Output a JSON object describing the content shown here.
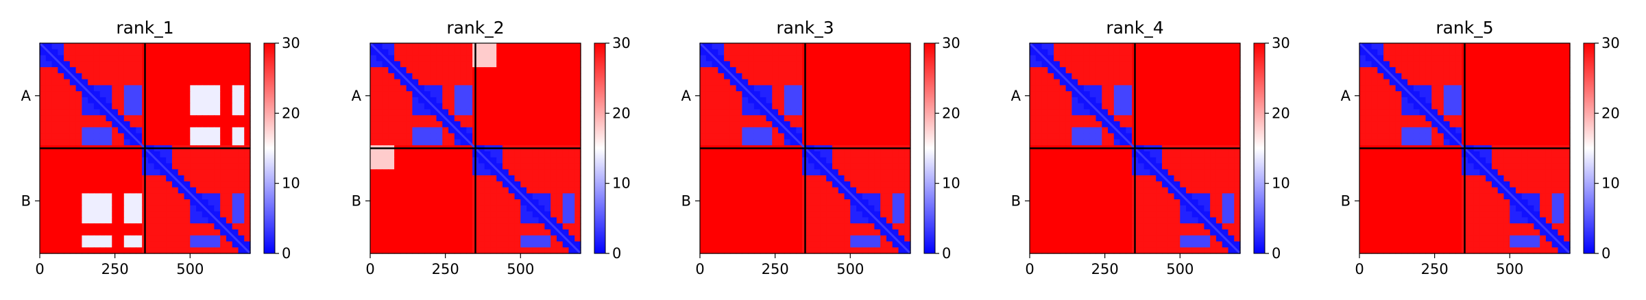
{
  "chart_data": [
    {
      "type": "heatmap",
      "title": "rank_1",
      "chains": [
        "A",
        "B"
      ],
      "chain_boundary": 350,
      "x_ticks": [
        0,
        250,
        500
      ],
      "xlim": [
        0,
        700
      ],
      "colorbar": {
        "min": 0,
        "max": 30,
        "ticks": [
          0,
          10,
          20,
          30
        ],
        "colors": [
          "#0000ff",
          "#ffffff",
          "#ff0000"
        ]
      },
      "intra_blocks": [
        [
          0,
          80
        ],
        [
          150,
          240
        ],
        [
          290,
          330
        ]
      ],
      "interchain_lowish": true
    },
    {
      "type": "heatmap",
      "title": "rank_2",
      "chains": [
        "A",
        "B"
      ],
      "chain_boundary": 350,
      "x_ticks": [
        0,
        250,
        500
      ],
      "xlim": [
        0,
        700
      ],
      "colorbar": {
        "min": 0,
        "max": 30,
        "ticks": [
          0,
          10,
          20,
          30
        ],
        "colors": [
          "#0000ff",
          "#ffffff",
          "#ff0000"
        ]
      },
      "intra_blocks": [
        [
          0,
          80
        ],
        [
          150,
          240
        ],
        [
          290,
          330
        ]
      ],
      "interchain_lowish": false
    },
    {
      "type": "heatmap",
      "title": "rank_3",
      "chains": [
        "A",
        "B"
      ],
      "chain_boundary": 350,
      "x_ticks": [
        0,
        250,
        500
      ],
      "xlim": [
        0,
        700
      ],
      "colorbar": {
        "min": 0,
        "max": 30,
        "ticks": [
          0,
          10,
          20,
          30
        ],
        "colors": [
          "#0000ff",
          "#ffffff",
          "#ff0000"
        ]
      },
      "intra_blocks": [
        [
          0,
          80
        ],
        [
          150,
          240
        ],
        [
          290,
          330
        ]
      ],
      "interchain_lowish": false
    },
    {
      "type": "heatmap",
      "title": "rank_4",
      "chains": [
        "A",
        "B"
      ],
      "chain_boundary": 350,
      "x_ticks": [
        0,
        250,
        500
      ],
      "xlim": [
        0,
        700
      ],
      "colorbar": {
        "min": 0,
        "max": 30,
        "ticks": [
          0,
          10,
          20,
          30
        ],
        "colors": [
          "#0000ff",
          "#ffffff",
          "#ff0000"
        ]
      },
      "intra_blocks": [
        [
          0,
          80
        ],
        [
          150,
          240
        ],
        [
          290,
          330
        ]
      ],
      "interchain_lowish": false
    },
    {
      "type": "heatmap",
      "title": "rank_5",
      "chains": [
        "A",
        "B"
      ],
      "chain_boundary": 350,
      "x_ticks": [
        0,
        250,
        500
      ],
      "xlim": [
        0,
        700
      ],
      "colorbar": {
        "min": 0,
        "max": 30,
        "ticks": [
          0,
          10,
          20,
          30
        ],
        "colors": [
          "#0000ff",
          "#ffffff",
          "#ff0000"
        ]
      },
      "intra_blocks": [
        [
          0,
          80
        ],
        [
          150,
          240
        ],
        [
          290,
          330
        ]
      ],
      "interchain_lowish": false
    }
  ]
}
